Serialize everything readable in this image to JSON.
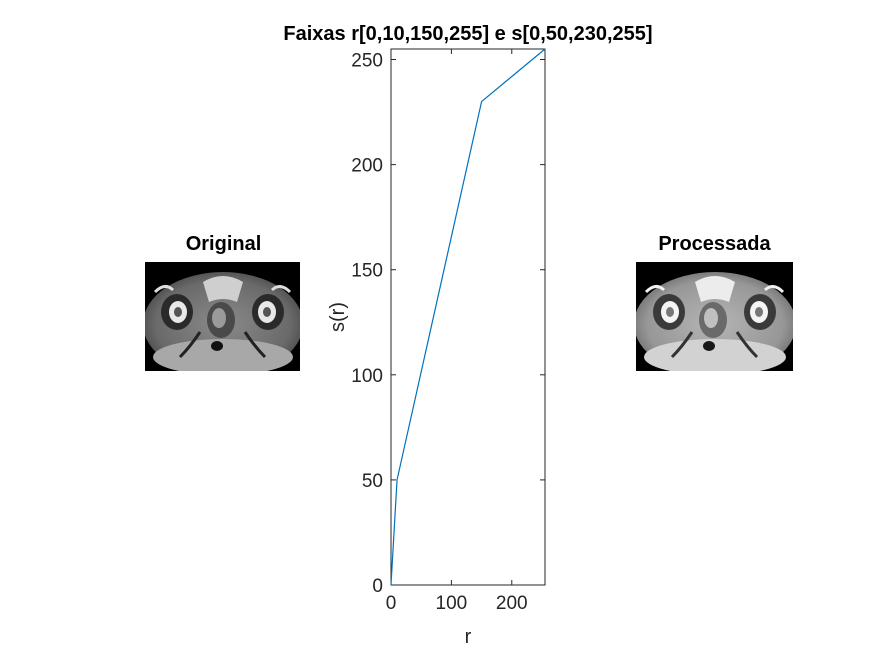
{
  "left_panel": {
    "title": "Original"
  },
  "right_panel": {
    "title": "Processada"
  },
  "colors": {
    "line": "#0072BD",
    "axis": "#262626",
    "background": "#ffffff"
  },
  "chart_data": {
    "type": "line",
    "title": "Faixas r[0,10,150,255] e s[0,50,230,255]",
    "xlabel": "r",
    "ylabel": "s(r)",
    "xlim": [
      0,
      255
    ],
    "ylim": [
      0,
      255
    ],
    "x_ticks": [
      0,
      100,
      200
    ],
    "y_ticks": [
      0,
      50,
      100,
      150,
      200,
      250
    ],
    "grid": false,
    "x": [
      0,
      10,
      150,
      255
    ],
    "y": [
      0,
      50,
      230,
      255
    ]
  }
}
